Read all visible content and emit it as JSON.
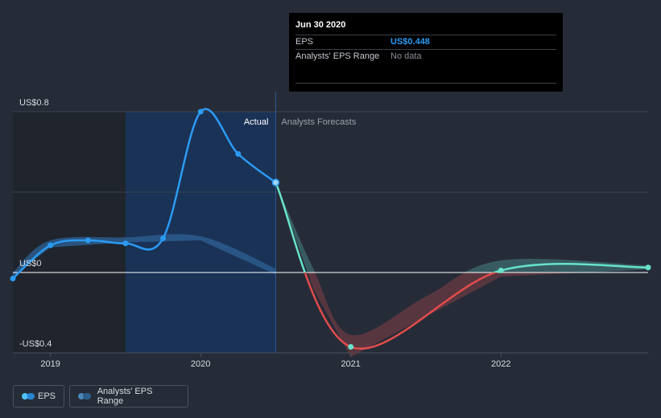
{
  "tooltip": {
    "date": "Jun 30 2020",
    "eps_label": "EPS",
    "eps_value": "US$0.448",
    "range_label": "Analysts' EPS Range",
    "range_value": "No data"
  },
  "legend": {
    "eps_label": "EPS",
    "range_label": "Analysts' EPS Range"
  },
  "colors": {
    "background": "#262c37",
    "eps_line": "#2b9af3",
    "forecast_positive": "#67e3c9",
    "forecast_negative": "#e24c4c",
    "range_band_actual": "#2c5c8c",
    "range_band_forecast_pos": "#3f6b70",
    "range_band_forecast_neg": "#6a3a44",
    "highlight_region": "#1a3256",
    "dark_region": "#1f242d"
  },
  "chart_data": {
    "type": "line",
    "y_tick_labels": [
      "US$0.8",
      "US$0",
      "-US$0.4"
    ],
    "x_tick_labels": [
      "2019",
      "2020",
      "2021",
      "2022"
    ],
    "ylim": [
      -0.4,
      0.8
    ],
    "xlim": [
      2018.75,
      2022.98
    ],
    "section_labels": {
      "actual": "Actual",
      "forecast": "Analysts Forecasts"
    },
    "divider_x": 2020.5,
    "highlight_start": 2019.5,
    "series": [
      {
        "name": "EPS",
        "points": [
          [
            2018.75,
            -0.03
          ],
          [
            2019.0,
            0.135
          ],
          [
            2019.25,
            0.16
          ],
          [
            2019.5,
            0.145
          ],
          [
            2019.75,
            0.17
          ],
          [
            2020.0,
            0.8
          ],
          [
            2020.25,
            0.59
          ],
          [
            2020.5,
            0.448
          ]
        ]
      },
      {
        "name": "Forecast",
        "points": [
          [
            2020.5,
            0.448
          ],
          [
            2021.0,
            -0.37
          ],
          [
            2022.0,
            0.01
          ],
          [
            2022.98,
            0.025
          ]
        ]
      },
      {
        "name": "Analysts' EPS Range",
        "upper": [
          [
            2018.75,
            0.0
          ],
          [
            2019.0,
            0.16
          ],
          [
            2019.5,
            0.175
          ],
          [
            2020.0,
            0.18
          ],
          [
            2020.5,
            0.02
          ]
        ],
        "lower": [
          [
            2018.75,
            -0.02
          ],
          [
            2019.0,
            0.125
          ],
          [
            2019.5,
            0.15
          ],
          [
            2020.0,
            0.16
          ],
          [
            2020.5,
            -0.01
          ]
        ]
      },
      {
        "name": "Analysts' EPS Range (forecast)",
        "upper": [
          [
            2020.5,
            0.448
          ],
          [
            2020.75,
            0.02
          ],
          [
            2021.0,
            -0.31
          ],
          [
            2021.5,
            -0.12
          ],
          [
            2022.0,
            0.06
          ],
          [
            2022.98,
            0.035
          ]
        ],
        "lower": [
          [
            2020.5,
            0.448
          ],
          [
            2020.75,
            -0.08
          ],
          [
            2021.0,
            -0.42
          ],
          [
            2021.5,
            -0.22
          ],
          [
            2022.0,
            -0.02
          ],
          [
            2022.98,
            0.015
          ]
        ]
      }
    ]
  }
}
